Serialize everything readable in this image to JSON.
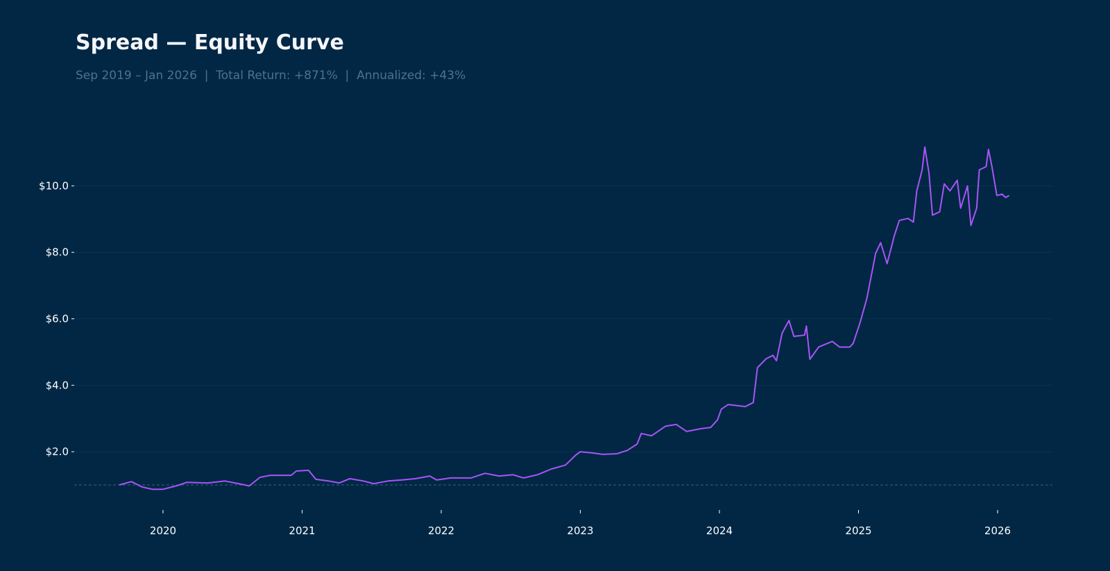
{
  "title": "Spread — Equity Curve",
  "subtitle": "Sep 2019 – Jan 2026  |  Total Return: +871%  |  Annualized: +43%",
  "colors": {
    "background": "#012744",
    "line": "#a855f7",
    "grid": "#0c3350",
    "baseline": "#3d5f7a",
    "subtitle": "#4f7191"
  },
  "chart_data": {
    "type": "line",
    "title": "Spread — Equity Curve",
    "xlabel": "",
    "ylabel": "",
    "x_ticks": [
      "2020",
      "2021",
      "2022",
      "2023",
      "2024",
      "2025",
      "2026"
    ],
    "y_ticks": [
      {
        "value": 2,
        "label": "$2.0"
      },
      {
        "value": 4,
        "label": "$4.0"
      },
      {
        "value": 6,
        "label": "$6.0"
      },
      {
        "value": 8,
        "label": "$8.0"
      },
      {
        "value": 10,
        "label": "$10.0"
      }
    ],
    "xlim": [
      "2019-05-10",
      "2026-05-22"
    ],
    "ylim": [
      0.25,
      11.6
    ],
    "grid": "horizontal",
    "reference_line": {
      "value": 1.0,
      "style": "dashed"
    },
    "series": [
      {
        "x": [
          "2019-09-08",
          "2019-10-10",
          "2019-11-07",
          "2019-12-04",
          "2020-01-01",
          "2020-02-07",
          "2020-03-04",
          "2020-04-28",
          "2020-06-12",
          "2020-07-18",
          "2020-08-15",
          "2020-09-12",
          "2020-10-09",
          "2020-12-03",
          "2020-12-17",
          "2021-01-18",
          "2021-02-06",
          "2021-03-12",
          "2021-04-09",
          "2021-05-06",
          "2021-06-11",
          "2021-07-08",
          "2021-08-14",
          "2021-09-20",
          "2021-10-26",
          "2021-12-02",
          "2021-12-20",
          "2022-01-26",
          "2022-03-20",
          "2022-04-26",
          "2022-06-02",
          "2022-07-08",
          "2022-08-05",
          "2022-09-11",
          "2022-10-17",
          "2022-11-23",
          "2022-12-20",
          "2023-01-01",
          "2023-02-04",
          "2023-03-01",
          "2023-04-07",
          "2023-05-04",
          "2023-05-30",
          "2023-06-10",
          "2023-07-07",
          "2023-08-13",
          "2023-09-10",
          "2023-10-07",
          "2023-11-12",
          "2023-12-09",
          "2023-12-27",
          "2024-01-06",
          "2024-01-24",
          "2024-03-09",
          "2024-03-30",
          "2024-04-10",
          "2024-05-03",
          "2024-05-21",
          "2024-05-30",
          "2024-06-14",
          "2024-07-02",
          "2024-07-15",
          "2024-08-12",
          "2024-08-17",
          "2024-08-26",
          "2024-09-18",
          "2024-10-24",
          "2024-11-12",
          "2024-12-09",
          "2024-12-18",
          "2025-01-05",
          "2025-01-23",
          "2025-02-15",
          "2025-02-28",
          "2025-03-17",
          "2025-04-05",
          "2025-04-18",
          "2025-05-11",
          "2025-05-25",
          "2025-06-03",
          "2025-06-17",
          "2025-06-24",
          "2025-07-05",
          "2025-07-14",
          "2025-08-02",
          "2025-08-14",
          "2025-08-29",
          "2025-09-17",
          "2025-09-26",
          "2025-10-14",
          "2025-10-23",
          "2025-11-07",
          "2025-11-14",
          "2025-12-02",
          "2025-12-08",
          "2025-12-17",
          "2025-12-30",
          "2026-01-13",
          "2026-01-22",
          "2026-01-31"
        ],
        "y": [
          1.0,
          1.1,
          0.94,
          0.87,
          0.87,
          0.98,
          1.08,
          1.06,
          1.12,
          1.04,
          0.97,
          1.23,
          1.29,
          1.29,
          1.42,
          1.44,
          1.17,
          1.12,
          1.06,
          1.19,
          1.12,
          1.04,
          1.12,
          1.15,
          1.19,
          1.27,
          1.15,
          1.21,
          1.21,
          1.35,
          1.27,
          1.31,
          1.21,
          1.31,
          1.48,
          1.6,
          1.9,
          2.0,
          1.96,
          1.92,
          1.94,
          2.04,
          2.23,
          2.55,
          2.48,
          2.77,
          2.82,
          2.61,
          2.69,
          2.73,
          2.96,
          3.28,
          3.42,
          3.36,
          3.48,
          4.53,
          4.8,
          4.9,
          4.74,
          5.57,
          5.95,
          5.47,
          5.51,
          5.78,
          4.78,
          5.15,
          5.32,
          5.15,
          5.15,
          5.26,
          5.88,
          6.62,
          7.97,
          8.29,
          7.66,
          8.5,
          8.96,
          9.02,
          8.91,
          9.85,
          10.48,
          11.17,
          10.38,
          9.12,
          9.22,
          10.06,
          9.85,
          10.17,
          9.33,
          10.0,
          8.81,
          9.33,
          10.48,
          10.58,
          11.1,
          10.58,
          9.71,
          9.75,
          9.65,
          9.71
        ]
      }
    ]
  }
}
